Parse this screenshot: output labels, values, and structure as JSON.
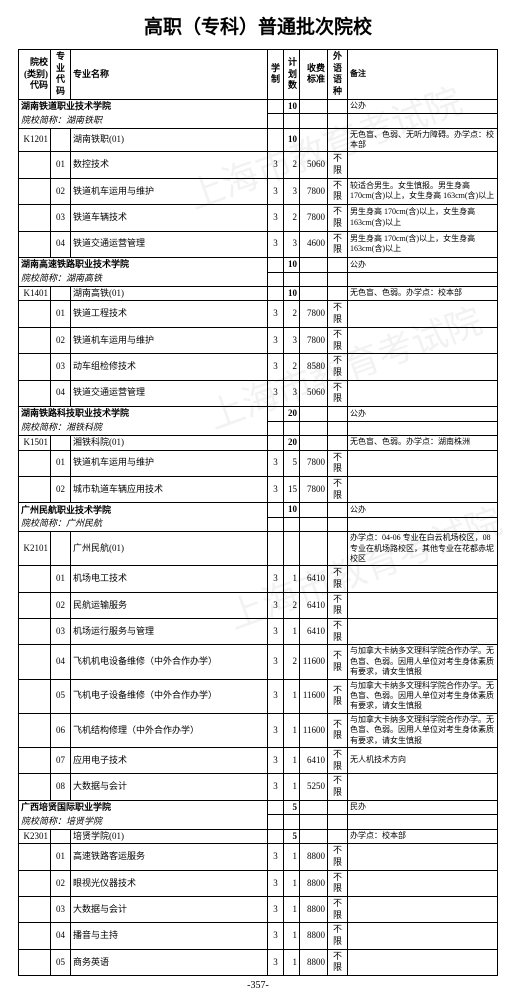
{
  "page_title": "高职（专科）普通批次院校",
  "page_number": "-357-",
  "watermark_text": "上海市教育考试院",
  "columns": [
    {
      "label": "院校(类别)\n代码",
      "class": "c-code"
    },
    {
      "label": "专业\n代码",
      "class": "c-major"
    },
    {
      "label": "专业名称",
      "class": "c-name"
    },
    {
      "label": "学\n制",
      "class": "c-sys"
    },
    {
      "label": "计划\n数",
      "class": "c-plan"
    },
    {
      "label": "收费\n标准",
      "class": "c-fee"
    },
    {
      "label": "外语\n语种",
      "class": "c-lang"
    },
    {
      "label": "备注",
      "class": "c-rem"
    }
  ],
  "blocks": [
    {
      "type": "section",
      "title": "湖南铁道职业技术学院",
      "plan": "10",
      "remark": "公办",
      "sub": "院校简称：湖南铁职",
      "rows": [
        {
          "code": "K1201",
          "major": "",
          "name": "湖南铁职(01)",
          "sys": "",
          "plan": "10",
          "fee": "",
          "lang": "",
          "rem": "无色盲、色弱、无听力障碍。办学点：校本部"
        },
        {
          "code": "",
          "major": "01",
          "name": "数控技术",
          "sys": "3",
          "plan": "2",
          "fee": "5060",
          "lang": "不限",
          "rem": ""
        },
        {
          "code": "",
          "major": "02",
          "name": "铁道机车运用与维护",
          "sys": "3",
          "plan": "3",
          "fee": "7800",
          "lang": "不限",
          "rem": "较适合男生。女生慎报。男生身高 170cm(含)以上，女生身高 163cm(含)以上"
        },
        {
          "code": "",
          "major": "03",
          "name": "铁道车辆技术",
          "sys": "3",
          "plan": "2",
          "fee": "7800",
          "lang": "不限",
          "rem": "男生身高 170cm(含)以上，女生身高 163cm(含)以上"
        },
        {
          "code": "",
          "major": "04",
          "name": "铁道交通运营管理",
          "sys": "3",
          "plan": "3",
          "fee": "4600",
          "lang": "不限",
          "rem": "男生身高 170cm(含)以上，女生身高 163cm(含)以上"
        }
      ]
    },
    {
      "type": "section",
      "title": "湖南高速铁路职业技术学院",
      "plan": "10",
      "remark": "公办",
      "sub": "院校简称：湖南高铁",
      "rows": [
        {
          "code": "K1401",
          "major": "",
          "name": "湖南高铁(01)",
          "sys": "",
          "plan": "10",
          "fee": "",
          "lang": "",
          "rem": "无色盲、色弱。办学点：校本部"
        },
        {
          "code": "",
          "major": "01",
          "name": "铁道工程技术",
          "sys": "3",
          "plan": "2",
          "fee": "7800",
          "lang": "不限",
          "rem": ""
        },
        {
          "code": "",
          "major": "02",
          "name": "铁道机车运用与维护",
          "sys": "3",
          "plan": "3",
          "fee": "7800",
          "lang": "不限",
          "rem": ""
        },
        {
          "code": "",
          "major": "03",
          "name": "动车组检修技术",
          "sys": "3",
          "plan": "2",
          "fee": "8580",
          "lang": "不限",
          "rem": ""
        },
        {
          "code": "",
          "major": "04",
          "name": "铁道交通运营管理",
          "sys": "3",
          "plan": "3",
          "fee": "5060",
          "lang": "不限",
          "rem": ""
        }
      ]
    },
    {
      "type": "section",
      "title": "湖南铁路科技职业技术学院",
      "plan": "20",
      "remark": "公办",
      "sub": "院校简称：湘铁科院",
      "rows": [
        {
          "code": "K1501",
          "major": "",
          "name": "湘铁科院(01)",
          "sys": "",
          "plan": "20",
          "fee": "",
          "lang": "",
          "rem": "无色盲、色弱。办学点：湖南株洲"
        },
        {
          "code": "",
          "major": "01",
          "name": "铁道机车运用与维护",
          "sys": "3",
          "plan": "5",
          "fee": "7800",
          "lang": "不限",
          "rem": ""
        },
        {
          "code": "",
          "major": "02",
          "name": "城市轨道车辆应用技术",
          "sys": "3",
          "plan": "15",
          "fee": "7800",
          "lang": "不限",
          "rem": ""
        }
      ]
    },
    {
      "type": "section",
      "title": "广州民航职业技术学院",
      "plan": "10",
      "remark": "公办",
      "sub": "院校简称：广州民航",
      "rows": [
        {
          "code": "K2101",
          "major": "",
          "name": "广州民航(01)",
          "sys": "",
          "plan": "",
          "fee": "",
          "lang": "",
          "rem": "办学点：04-06 专业在白云机场校区，08 专业在机场路校区，其他专业在花都赤坭校区"
        },
        {
          "code": "",
          "major": "01",
          "name": "机场电工技术",
          "sys": "3",
          "plan": "1",
          "fee": "6410",
          "lang": "不限",
          "rem": ""
        },
        {
          "code": "",
          "major": "02",
          "name": "民航运输服务",
          "sys": "3",
          "plan": "2",
          "fee": "6410",
          "lang": "不限",
          "rem": ""
        },
        {
          "code": "",
          "major": "03",
          "name": "机场运行服务与管理",
          "sys": "3",
          "plan": "1",
          "fee": "6410",
          "lang": "不限",
          "rem": ""
        },
        {
          "code": "",
          "major": "04",
          "name": "飞机机电设备维修（中外合作办学）",
          "sys": "3",
          "plan": "2",
          "fee": "11600",
          "lang": "不限",
          "rem": "与加拿大卡纳多文理科学院合作办学。无色盲、色弱。因用人单位对考生身体素质有要求，请女生慎报"
        },
        {
          "code": "",
          "major": "05",
          "name": "飞机电子设备维修（中外合作办学）",
          "sys": "3",
          "plan": "1",
          "fee": "11600",
          "lang": "不限",
          "rem": "与加拿大卡纳多文理科学院合作办学。无色盲、色弱。因用人单位对考生身体素质有要求，请女生慎报"
        },
        {
          "code": "",
          "major": "06",
          "name": "飞机结构修理（中外合作办学）",
          "sys": "3",
          "plan": "1",
          "fee": "11600",
          "lang": "不限",
          "rem": "与加拿大卡纳多文理科学院合作办学。无色盲、色弱。因用人单位对考生身体素质有要求，请女生慎报"
        },
        {
          "code": "",
          "major": "07",
          "name": "应用电子技术",
          "sys": "3",
          "plan": "1",
          "fee": "6410",
          "lang": "不限",
          "rem": "无人机技术方向"
        },
        {
          "code": "",
          "major": "08",
          "name": "大数据与会计",
          "sys": "3",
          "plan": "1",
          "fee": "5250",
          "lang": "不限",
          "rem": ""
        }
      ]
    },
    {
      "type": "section",
      "title": "广西培贤国际职业学院",
      "plan": "5",
      "remark": "民办",
      "sub": "院校简称：培贤学院",
      "rows": [
        {
          "code": "K2301",
          "major": "",
          "name": "培贤学院(01)",
          "sys": "",
          "plan": "5",
          "fee": "",
          "lang": "",
          "rem": "办学点：校本部"
        },
        {
          "code": "",
          "major": "01",
          "name": "高速铁路客运服务",
          "sys": "3",
          "plan": "1",
          "fee": "8800",
          "lang": "不限",
          "rem": ""
        },
        {
          "code": "",
          "major": "02",
          "name": "眼视光仪器技术",
          "sys": "3",
          "plan": "1",
          "fee": "8800",
          "lang": "不限",
          "rem": ""
        },
        {
          "code": "",
          "major": "03",
          "name": "大数据与会计",
          "sys": "3",
          "plan": "1",
          "fee": "8800",
          "lang": "不限",
          "rem": ""
        },
        {
          "code": "",
          "major": "04",
          "name": "播音与主持",
          "sys": "3",
          "plan": "1",
          "fee": "8800",
          "lang": "不限",
          "rem": ""
        },
        {
          "code": "",
          "major": "05",
          "name": "商务英语",
          "sys": "3",
          "plan": "1",
          "fee": "8800",
          "lang": "不限",
          "rem": ""
        }
      ]
    }
  ]
}
